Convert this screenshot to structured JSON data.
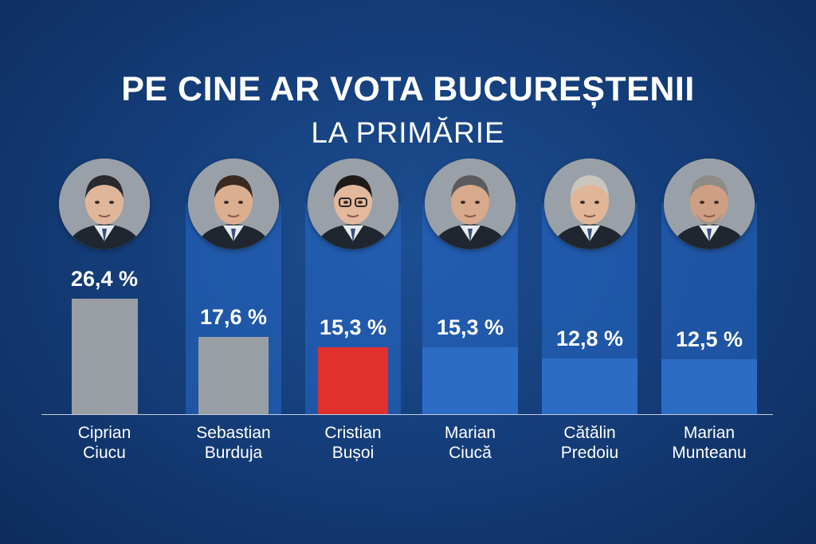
{
  "title": "PE CINE AR VOTA BUCUREȘTENII",
  "subtitle": "LA PRIMĂRIE",
  "colors": {
    "grey": "#999ea5",
    "red": "#e2302f",
    "blue": "#2c6cc4",
    "background": "#153f7c"
  },
  "chart_data": {
    "type": "bar",
    "title": "PE CINE AR VOTA BUCUREȘTENII LA PRIMĂRIE",
    "ylim": [
      0,
      30
    ],
    "grid": false,
    "categories": [
      "Ciprian Ciucu",
      "Sebastian Burduja",
      "Cristian Bușoi",
      "Marian Ciucă",
      "Cătălin Predoiu",
      "Marian Munteanu"
    ],
    "candidates": [
      {
        "first": "Ciprian",
        "last": "Ciucu",
        "label": "26,4 %",
        "value": 26.4,
        "color": "#999ea5"
      },
      {
        "first": "Sebastian",
        "last": "Burduja",
        "label": "17,6 %",
        "value": 17.6,
        "color": "#999ea5"
      },
      {
        "first": "Cristian",
        "last": "Bușoi",
        "label": "15,3 %",
        "value": 15.3,
        "color": "#e2302f"
      },
      {
        "first": "Marian",
        "last": "Ciucă",
        "label": "15,3 %",
        "value": 15.3,
        "color": "#2c6cc4"
      },
      {
        "first": "Cătălin",
        "last": "Predoiu",
        "label": "12,8 %",
        "value": 12.8,
        "color": "#2c6cc4"
      },
      {
        "first": "Marian",
        "last": "Munteanu",
        "label": "12,5 %",
        "value": 12.5,
        "color": "#2c6cc4"
      }
    ],
    "avatar_icons": [
      "person-photo-icon",
      "person-photo-icon",
      "person-photo-icon",
      "person-photo-icon",
      "person-photo-icon",
      "person-photo-icon"
    ]
  }
}
